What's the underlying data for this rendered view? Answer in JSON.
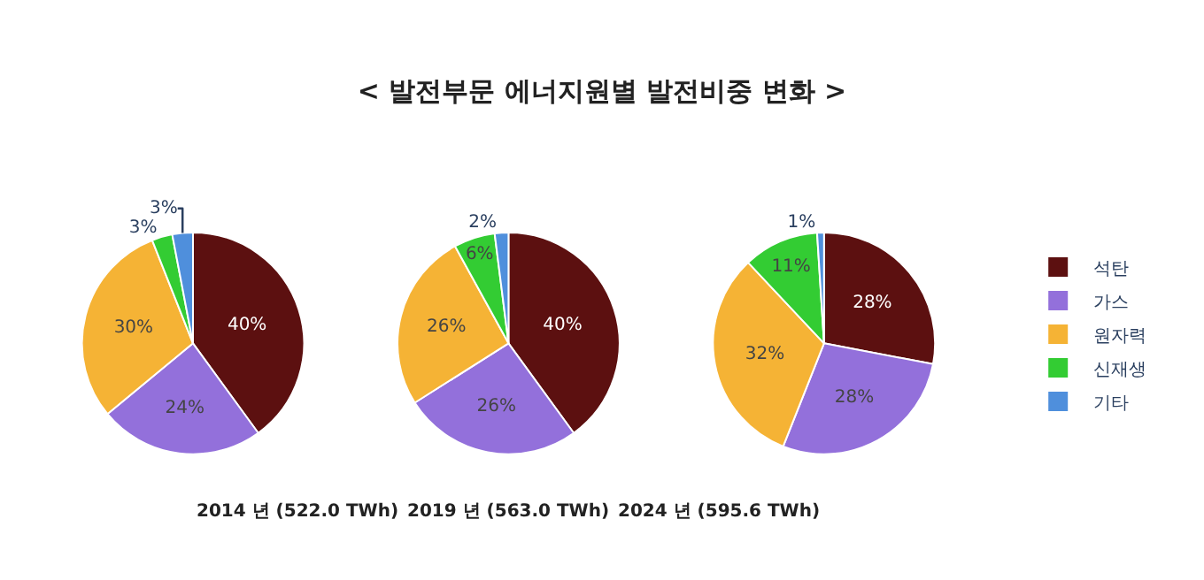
{
  "chart_data": {
    "type": "pie",
    "title": "< 발전부문 에너지원별 발전비중 변화 >",
    "legend": "right",
    "categories": [
      "석탄",
      "가스",
      "원자력",
      "신재생",
      "기타"
    ],
    "colors": [
      "#5c1010",
      "#9370db",
      "#f5b335",
      "#33cc33",
      "#4f8fdc"
    ],
    "series": [
      {
        "name": "2014 년 (522.0 TWh)",
        "values": [
          40,
          24,
          30,
          3,
          3
        ],
        "value_labels": [
          "40%",
          "24%",
          "30%",
          "3%",
          "3%"
        ]
      },
      {
        "name": "2019 년 (563.0 TWh)",
        "values": [
          40,
          26,
          26,
          6,
          2
        ],
        "value_labels": [
          "40%",
          "26%",
          "26%",
          "6%",
          "2%"
        ]
      },
      {
        "name": "2024 년 (595.6 TWh)",
        "values": [
          28,
          28,
          32,
          11,
          1
        ],
        "value_labels": [
          "28%",
          "28%",
          "32%",
          "11%",
          "1%"
        ]
      }
    ]
  }
}
